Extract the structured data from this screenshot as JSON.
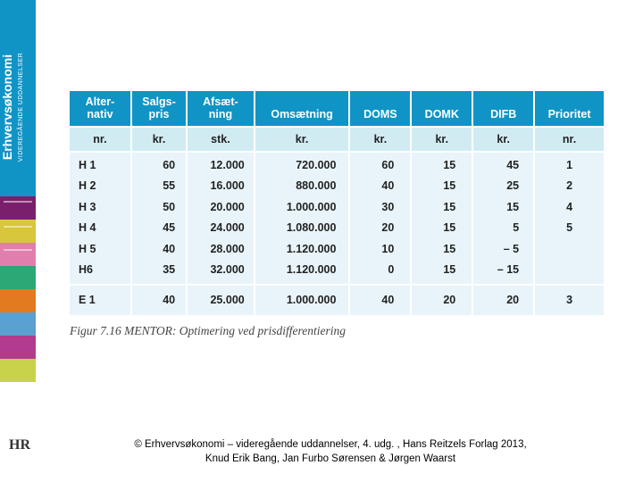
{
  "sidebar": {
    "title": "Erhvervsøkonomi",
    "subtitle": "VIDEREGÅENDE UDDANNELSER",
    "logo": "HR",
    "bg_color": "#1094c6",
    "ornament_colors": [
      "#7a1f6b",
      "#d8c63c",
      "#e07fae",
      "#2aa876",
      "#e27b1f",
      "#5aa0d0",
      "#b23b8f",
      "#c8d24a"
    ]
  },
  "table": {
    "type": "table",
    "header_bg": "#1094c6",
    "header_color": "#ffffff",
    "units_bg": "#d1ebf3",
    "body_bg": "#e8f4f9",
    "columns": [
      {
        "label_l1": "Alter-",
        "label_l2": "nativ",
        "unit": "nr."
      },
      {
        "label_l1": "Salgs-",
        "label_l2": "pris",
        "unit": "kr."
      },
      {
        "label_l1": "Afsæt-",
        "label_l2": "ning",
        "unit": "stk."
      },
      {
        "label_l1": "",
        "label_l2": "Omsætning",
        "unit": "kr."
      },
      {
        "label_l1": "",
        "label_l2": "DOMS",
        "unit": "kr."
      },
      {
        "label_l1": "",
        "label_l2": "DOMK",
        "unit": "kr."
      },
      {
        "label_l1": "",
        "label_l2": "DIFB",
        "unit": "kr."
      },
      {
        "label_l1": "",
        "label_l2": "Prioritet",
        "unit": "nr."
      }
    ],
    "rows_h": [
      [
        "H 1",
        "60",
        "12.000",
        "720.000",
        "60",
        "15",
        "45",
        "1"
      ],
      [
        "H 2",
        "55",
        "16.000",
        "880.000",
        "40",
        "15",
        "25",
        "2"
      ],
      [
        "H 3",
        "50",
        "20.000",
        "1.000.000",
        "30",
        "15",
        "15",
        "4"
      ],
      [
        "H 4",
        "45",
        "24.000",
        "1.080.000",
        "20",
        "15",
        "5",
        "5"
      ],
      [
        "H 5",
        "40",
        "28.000",
        "1.120.000",
        "10",
        "15",
        "–  5",
        ""
      ],
      [
        "H6",
        "35",
        "32.000",
        "1.120.000",
        "0",
        "15",
        "– 15",
        ""
      ]
    ],
    "rows_e": [
      [
        "E 1",
        "40",
        "25.000",
        "1.000.000",
        "40",
        "20",
        "20",
        "3"
      ]
    ]
  },
  "caption": "Figur 7.16 MENTOR: Optimering ved prisdifferentiering",
  "footer": {
    "line1": "© Erhvervsøkonomi – videregående uddannelser, 4. udg. , Hans Reitzels Forlag 2013,",
    "line2": "Knud Erik Bang, Jan Furbo Sørensen & Jørgen Waarst"
  }
}
